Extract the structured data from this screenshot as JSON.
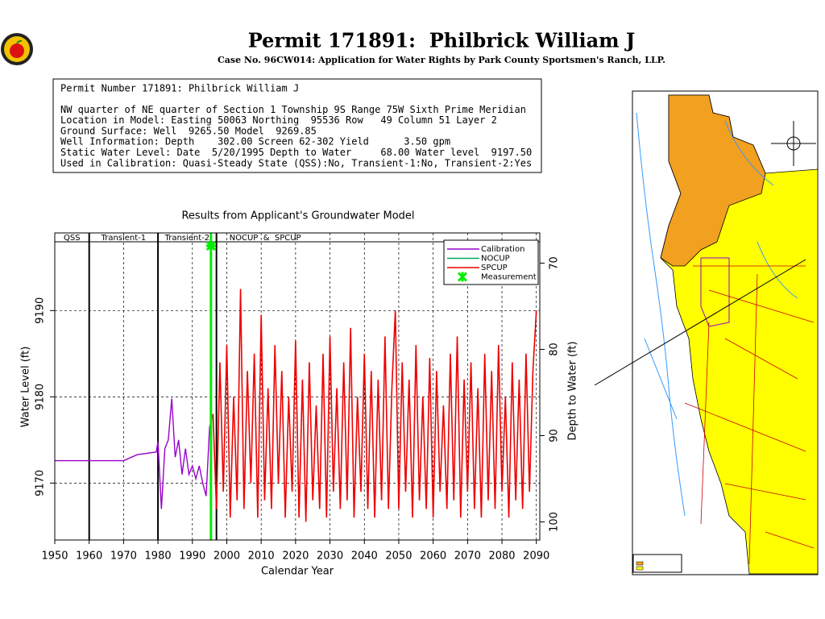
{
  "header": {
    "title": "Permit 171891:  Philbrick William J",
    "subtitle": "Case No. 96CW014: Application for Water Rights by Park County Sportsmen's Ranch, LLP."
  },
  "info": {
    "lines": [
      "Permit Number 171891: Philbrick William J",
      "NW quarter of NE quarter of Section 1 Township 9S Range 75W Sixth Prime Meridian",
      "Location in Model: Easting 50063 Northing  95536 Row   49 Column 51 Layer 2",
      "Ground Surface: Well  9265.50 Model  9269.85",
      "Well Information: Depth    302.00 Screen 62-302 Yield      3.50 gpm",
      "Static Water Level: Date  5/20/1995 Depth to Water     68.00 Water level  9197.50",
      "Used in Calibration: Quasi-Steady State (QSS):No, Transient-1:No, Transient-2:Yes"
    ]
  },
  "chart_data": {
    "type": "line",
    "title": "Results from Applicant's Groundwater Model",
    "xlabel": "Calendar Year",
    "ylabel": "Water Level (ft)",
    "y2label": "Depth to Water (ft)",
    "xlim": [
      1950,
      2091
    ],
    "xticks": [
      1950,
      1960,
      1970,
      1980,
      1990,
      2000,
      2010,
      2020,
      2030,
      2040,
      2050,
      2060,
      2070,
      2080,
      2090
    ],
    "ylim": [
      9163.4,
      9199
    ],
    "yticks": [
      9170,
      9180,
      9190
    ],
    "y2lim": [
      102.1,
      66.5
    ],
    "y2ticks": [
      70,
      80,
      90,
      100
    ],
    "grid": true,
    "legend": "upper right",
    "periods": [
      {
        "label": "QSS",
        "start": 1950
      },
      {
        "label": "Transient-1",
        "start": 1960
      },
      {
        "label": "Transient-2",
        "start": 1980
      },
      {
        "label": "NOCUP  &  SPCUP",
        "start": 1997
      }
    ],
    "series": [
      {
        "name": "Calibration",
        "color": "#9900cc",
        "x": [
          1950,
          1970,
          1974,
          1979.5,
          1980,
          1981,
          1982,
          1983,
          1984,
          1985,
          1986,
          1987,
          1988,
          1989,
          1990,
          1991,
          1992,
          1993,
          1994,
          1995,
          1996
        ],
        "values": [
          9172.6,
          9172.6,
          9173.3,
          9173.6,
          9174.8,
          9167,
          9174,
          9175,
          9179.8,
          9173,
          9175,
          9171,
          9174,
          9171,
          9172,
          9170.5,
          9172,
          9170,
          9168.5,
          9176.5,
          9178
        ]
      },
      {
        "name": "NOCUP",
        "color": "#00aa66",
        "x": [
          1995,
          1996
        ],
        "values": [
          9176.5,
          9178
        ]
      },
      {
        "name": "SPCUP",
        "color": "#ee0000",
        "x": [
          1996,
          1997,
          1998,
          1999,
          2000,
          2001,
          2002,
          2003,
          2004,
          2005,
          2006,
          2007,
          2008,
          2009,
          2010,
          2011,
          2012,
          2013,
          2014,
          2015,
          2016,
          2017,
          2018,
          2019,
          2020,
          2021,
          2022,
          2023,
          2024,
          2025,
          2026,
          2027,
          2028,
          2029,
          2030,
          2031,
          2032,
          2033,
          2034,
          2035,
          2036,
          2037,
          2038,
          2039,
          2040,
          2041,
          2042,
          2043,
          2044,
          2045,
          2046,
          2047,
          2048,
          2049,
          2050,
          2051,
          2052,
          2053,
          2054,
          2055,
          2056,
          2057,
          2058,
          2059,
          2060,
          2061,
          2062,
          2063,
          2064,
          2065,
          2066,
          2067,
          2068,
          2069,
          2070,
          2071,
          2072,
          2073,
          2074,
          2075,
          2076,
          2077,
          2078,
          2079,
          2080,
          2081,
          2082,
          2083,
          2084,
          2085,
          2086,
          2087,
          2088,
          2089,
          2090
        ],
        "values": [
          9178,
          9167,
          9184,
          9169,
          9186,
          9166,
          9180,
          9168,
          9192.5,
          9167,
          9183,
          9170,
          9185,
          9166,
          9189.5,
          9168,
          9181,
          9167,
          9186,
          9170,
          9183,
          9166,
          9180,
          9169,
          9186.5,
          9166,
          9182,
          9165.5,
          9184,
          9168,
          9179,
          9167,
          9185,
          9166,
          9187,
          9169,
          9181,
          9167,
          9184,
          9168,
          9188,
          9166,
          9180,
          9169,
          9185,
          9167,
          9183,
          9166,
          9182,
          9168,
          9187,
          9167,
          9181,
          9190,
          9167,
          9184,
          9169,
          9182,
          9166,
          9186,
          9168,
          9180,
          9167,
          9184.5,
          9166,
          9183,
          9169,
          9179,
          9167,
          9185,
          9168,
          9187,
          9166,
          9182,
          9169,
          9184,
          9167,
          9181,
          9166,
          9185,
          9168,
          9183,
          9167,
          9186,
          9169,
          9180,
          9166,
          9184,
          9168,
          9182,
          9167,
          9185,
          9169,
          9183,
          9190
        ]
      },
      {
        "name": "Measurement",
        "color": "#00ee00",
        "marker": "star",
        "x": [
          1995.4
        ],
        "values": [
          9197.5
        ]
      }
    ]
  }
}
